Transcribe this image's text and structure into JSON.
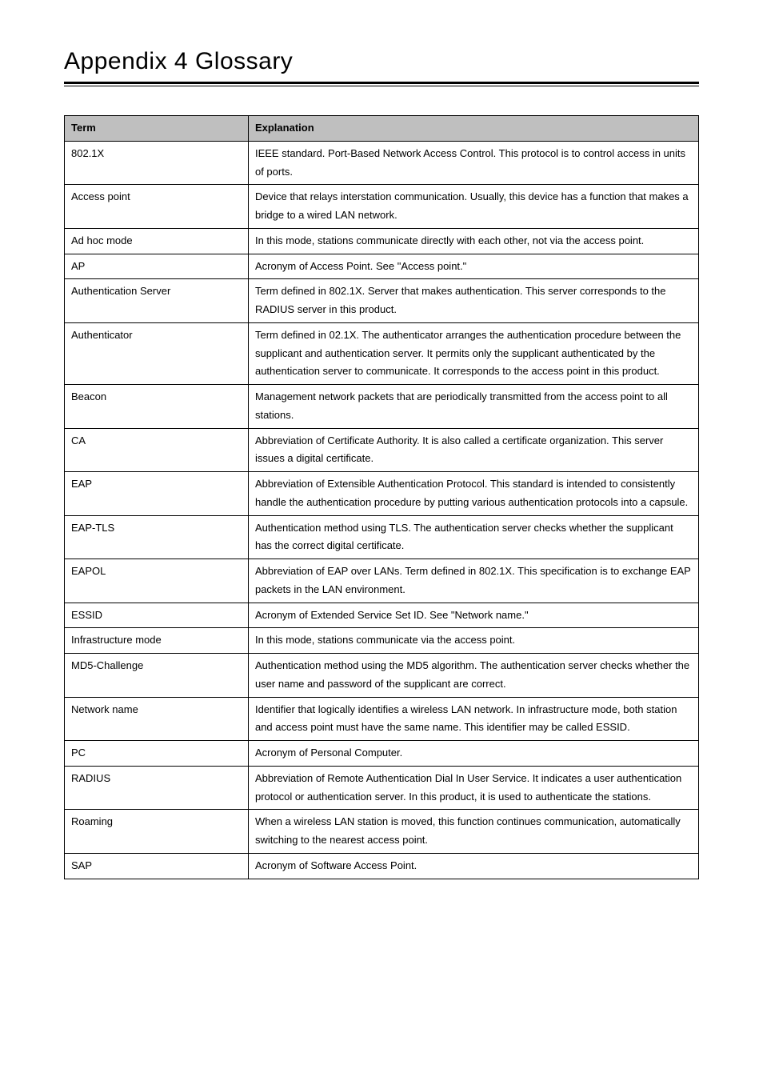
{
  "page": {
    "title": "Appendix 4   Glossary"
  },
  "table": {
    "headers": {
      "term": "Term",
      "explanation": "Explanation"
    },
    "rows": [
      {
        "term": "802.1X",
        "explanation": "IEEE standard.  Port-Based Network Access Control.  This protocol is to control access in units of ports."
      },
      {
        "term": "Access point",
        "explanation": "Device that relays interstation communication.  Usually, this device has a function that makes a bridge to a wired LAN network."
      },
      {
        "term": "Ad hoc mode",
        "explanation": "In this mode, stations communicate directly with each other, not via the access point."
      },
      {
        "term": "AP",
        "explanation": "Acronym of Access Point.  See \"Access point.\""
      },
      {
        "term": "Authentication Server",
        "explanation": "Term defined in 802.1X.  Server that makes authentication.  This server corresponds to the RADIUS server in this product."
      },
      {
        "term": "Authenticator",
        "explanation": "Term defined in  02.1X.  The authenticator arranges the authentication procedure between the supplicant and authentication server.  It permits only the supplicant authenticated by the authentication server to communicate.  It corresponds to the access point in this product."
      },
      {
        "term": "Beacon",
        "explanation": "Management network packets that are periodically transmitted from the access point to all stations."
      },
      {
        "term": "CA",
        "explanation": "Abbreviation of Certificate Authority.  It is also called a certificate organization.  This server issues a digital certificate."
      },
      {
        "term": "EAP",
        "explanation": "Abbreviation of Extensible Authentication Protocol. This standard is intended to consistently handle the authentication procedure by putting various authentication protocols into a capsule."
      },
      {
        "term": "EAP-TLS",
        "explanation": "Authentication method using TLS.  The authentication server checks whether the supplicant has the correct digital certificate."
      },
      {
        "term": "EAPOL",
        "explanation": "Abbreviation of EAP over LANs.  Term defined in 802.1X.  This specification is to exchange EAP packets in the LAN environment."
      },
      {
        "term": "ESSID",
        "explanation": "Acronym of Extended Service Set ID.  See \"Network name.\""
      },
      {
        "term": "Infrastructure mode",
        "explanation": "In this mode, stations communicate via the access point."
      },
      {
        "term": "MD5-Challenge",
        "explanation": "Authentication method using the MD5 algorithm.  The authentication server checks whether the user name and password of the supplicant are correct."
      },
      {
        "term": "Network name",
        "explanation": "Identifier that logically identifies a wireless LAN network.  In infrastructure mode, both station and access point must have the same name.\nThis identifier may be called ESSID."
      },
      {
        "term": "PC",
        "explanation": "Acronym of Personal Computer."
      },
      {
        "term": "RADIUS",
        "explanation": "Abbreviation of Remote Authentication Dial In User Service.  It indicates a user authentication protocol or authentication server.  In this product, it is used to authenticate the stations."
      },
      {
        "term": "Roaming",
        "explanation": "When a wireless LAN station is moved, this function continues communication, automatically switching to the nearest access point."
      },
      {
        "term": "SAP",
        "explanation": "Acronym of Software Access Point."
      }
    ]
  }
}
